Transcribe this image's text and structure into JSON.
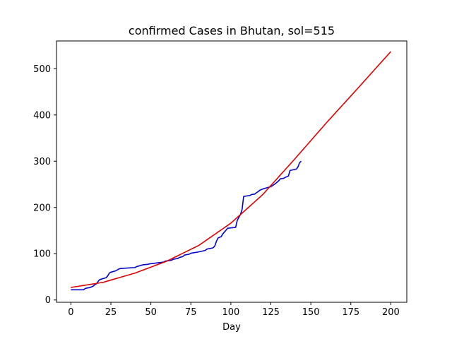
{
  "chart_data": {
    "type": "line",
    "title": "confirmed Cases in Bhutan, sol=515",
    "xlabel": "Day",
    "ylabel": "",
    "xlim": [
      -9,
      210
    ],
    "ylim": [
      -5,
      560
    ],
    "xticks": [
      0,
      25,
      50,
      75,
      100,
      125,
      150,
      175,
      200
    ],
    "yticks": [
      0,
      100,
      200,
      300,
      400,
      500
    ],
    "grid": false,
    "legend": "none",
    "series": [
      {
        "color": "#0000cc",
        "x": [
          0,
          8,
          9,
          12,
          14,
          15,
          16,
          17,
          18,
          22,
          23,
          24,
          25,
          28,
          29,
          30,
          31,
          35,
          40,
          41,
          45,
          48,
          49,
          58,
          59,
          63,
          64,
          67,
          68,
          70,
          71,
          74,
          75,
          80,
          84,
          85,
          88,
          89,
          90,
          91,
          92,
          94,
          95,
          97,
          98,
          103,
          104,
          106,
          107,
          108,
          112,
          113,
          115,
          116,
          117,
          118,
          120,
          125,
          126,
          128,
          129,
          130,
          131,
          133,
          134,
          136,
          137,
          141,
          142,
          143,
          144
        ],
        "y": [
          22,
          22,
          25,
          27,
          30,
          33,
          35,
          40,
          44,
          48,
          52,
          58,
          60,
          63,
          65,
          67,
          68,
          69,
          70,
          72,
          76,
          77,
          78,
          82,
          84,
          86,
          88,
          90,
          92,
          94,
          97,
          99,
          101,
          104,
          107,
          110,
          112,
          113,
          117,
          127,
          134,
          137,
          143,
          151,
          155,
          157,
          172,
          185,
          195,
          224,
          226,
          228,
          229,
          232,
          234,
          237,
          240,
          245,
          247,
          252,
          255,
          258,
          262,
          263,
          265,
          268,
          280,
          283,
          288,
          297,
          300
        ]
      },
      {
        "color": "#dd0000",
        "fit": "polynomial",
        "x": [
          0,
          20,
          40,
          60,
          80,
          100,
          120,
          140,
          160,
          180,
          200
        ],
        "y": [
          27,
          38,
          58,
          84,
          118,
          166,
          228,
          305,
          384,
          460,
          537
        ]
      }
    ]
  }
}
